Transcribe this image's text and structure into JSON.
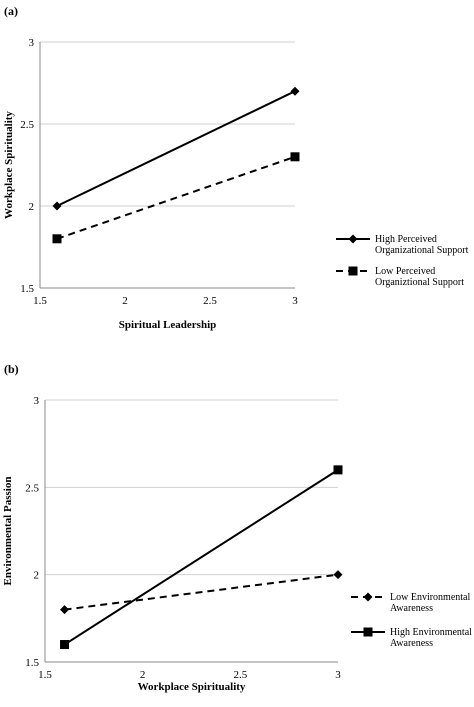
{
  "panels": [
    {
      "label": "(a)"
    },
    {
      "label": "(b)"
    }
  ],
  "chart_data": [
    {
      "type": "line",
      "title": "",
      "xlabel": "Spiritual  Leadership",
      "ylabel": "Workplace Spirituality",
      "xlim": [
        1.5,
        3
      ],
      "ylim": [
        1.5,
        3
      ],
      "xticks": [
        "1.5",
        "2",
        "2.5",
        "3"
      ],
      "yticks": [
        "1.5",
        "2",
        "2.5",
        "3"
      ],
      "grid": "horizontal",
      "legend_position": "right",
      "x": [
        1.6,
        3
      ],
      "series": [
        {
          "name": "High Perceived Organizational Support",
          "legend_lines": [
            "High Perceived",
            "Organizational Support"
          ],
          "values": [
            2.0,
            2.7
          ],
          "style": "solid",
          "marker": "diamond",
          "color": "#000000"
        },
        {
          "name": "Low Perceived Organiztional Support",
          "legend_lines": [
            "Low Perceived",
            "Organiztional Support"
          ],
          "values": [
            1.8,
            2.3
          ],
          "style": "dashed",
          "marker": "square",
          "color": "#000000"
        }
      ]
    },
    {
      "type": "line",
      "title": "",
      "xlabel": "Workplace Spirituality",
      "ylabel": "Environmental Passion",
      "xlim": [
        1.5,
        3
      ],
      "ylim": [
        1.5,
        3
      ],
      "xticks": [
        "1.5",
        "2",
        "2.5",
        "3"
      ],
      "yticks": [
        "1.5",
        "2",
        "2.5",
        "3"
      ],
      "grid": "horizontal",
      "legend_position": "right",
      "x": [
        1.6,
        3
      ],
      "series": [
        {
          "name": "Low Environmental Awareness",
          "legend_lines": [
            "Low Environmental",
            "Awareness"
          ],
          "values": [
            1.8,
            2.0
          ],
          "style": "dashed",
          "marker": "diamond",
          "color": "#000000"
        },
        {
          "name": "High Environmental Awareness",
          "legend_lines": [
            "High Environmental",
            "Awareness"
          ],
          "values": [
            1.6,
            2.6
          ],
          "style": "solid",
          "marker": "square",
          "color": "#000000"
        }
      ]
    }
  ]
}
